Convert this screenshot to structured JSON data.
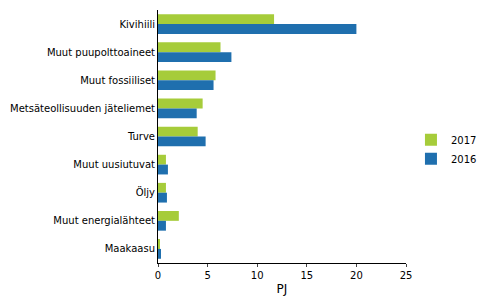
{
  "chart_data": {
    "type": "bar",
    "orientation": "horizontal",
    "categories": [
      "Kivihiili",
      "Muut puupolttoaineet",
      "Muut fossiiliset",
      "Metsäteollisuuden jäteliemet",
      "Turve",
      "Muut uusiutuvat",
      "Öljy",
      "Muut energialähteet",
      "Maakaasu"
    ],
    "series": [
      {
        "name": "2017",
        "color": "#a6cc3a",
        "values": [
          11.7,
          6.3,
          5.8,
          4.5,
          4.0,
          0.8,
          0.8,
          2.1,
          0.2
        ]
      },
      {
        "name": "2016",
        "color": "#1f6fae",
        "values": [
          20.0,
          7.4,
          5.6,
          3.9,
          4.8,
          1.0,
          0.9,
          0.8,
          0.3
        ]
      }
    ],
    "x_label": "PJ",
    "xlim": [
      0,
      25
    ],
    "xticks": [
      0,
      5,
      10,
      15,
      20,
      25
    ],
    "grid": false,
    "legend": "right"
  }
}
